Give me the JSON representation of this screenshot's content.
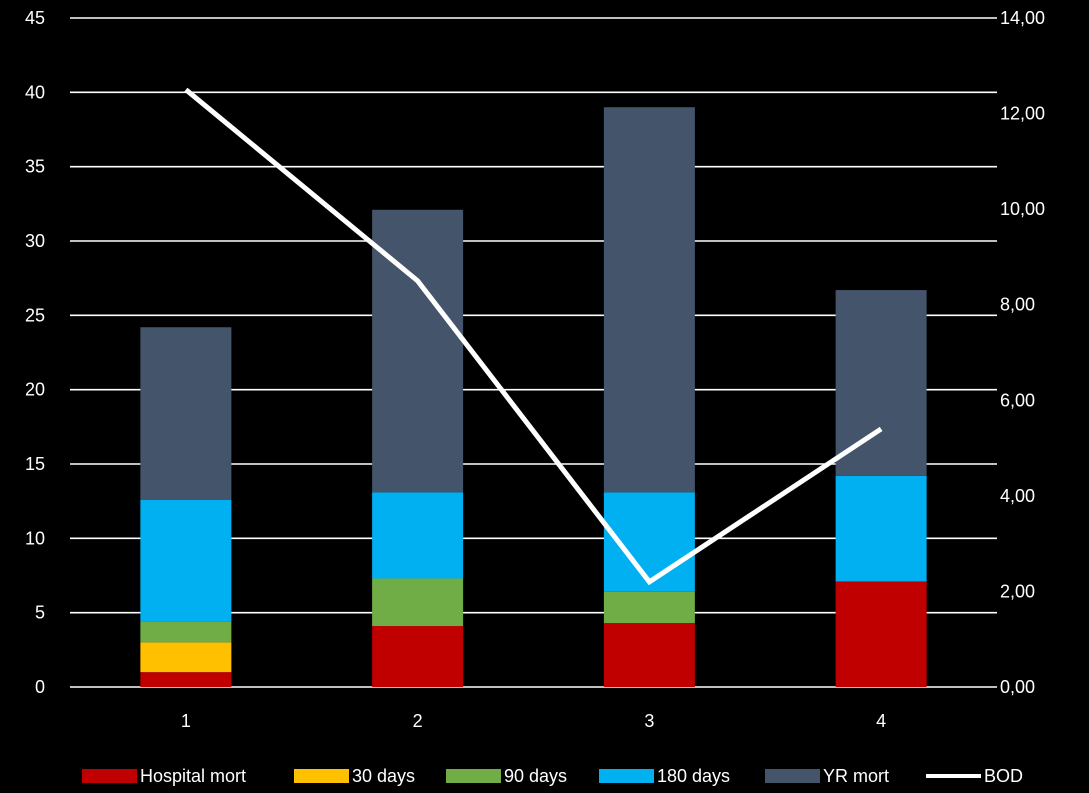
{
  "chart_data": {
    "type": "bar",
    "stacked": true,
    "categories": [
      "1",
      "2",
      "3",
      "4"
    ],
    "series": [
      {
        "name": "Hospital mort",
        "color": "#c00000",
        "values": [
          1,
          4.1,
          4.3,
          7.1
        ]
      },
      {
        "name": "30 days",
        "color": "#ffc000",
        "values": [
          2,
          0,
          0,
          0
        ]
      },
      {
        "name": "90 days",
        "color": "#70ad47",
        "values": [
          1.4,
          3.2,
          2.1,
          0
        ]
      },
      {
        "name": "180 days",
        "color": "#00b0f0",
        "values": [
          8.2,
          5.8,
          6.7,
          7.1
        ]
      },
      {
        "name": "YR mort",
        "color": "#44546a",
        "values": [
          11.6,
          19,
          25.9,
          12.5
        ]
      }
    ],
    "line_series": {
      "name": "BOD",
      "color": "#ffffff",
      "axis": "right",
      "values": [
        12.5,
        8.5,
        2.2,
        5.4
      ]
    },
    "y_left": {
      "min": 0,
      "max": 45,
      "ticks": [
        "0",
        "5",
        "10",
        "15",
        "20",
        "25",
        "30",
        "35",
        "40",
        "45"
      ]
    },
    "y_right": {
      "min": 0,
      "max": 14,
      "ticks": [
        "0,00",
        "2,00",
        "4,00",
        "6,00",
        "8,00",
        "10,00",
        "12,00",
        "14,00"
      ]
    },
    "grid": true,
    "legend_position": "bottom",
    "title": "",
    "xlabel": "",
    "ylabel": ""
  },
  "legend": {
    "items": [
      {
        "label": "Hospital mort",
        "color": "#c00000",
        "kind": "box"
      },
      {
        "label": "30 days",
        "color": "#ffc000",
        "kind": "box"
      },
      {
        "label": "90 days",
        "color": "#70ad47",
        "kind": "box"
      },
      {
        "label": "180 days",
        "color": "#00b0f0",
        "kind": "box"
      },
      {
        "label": "YR mort",
        "color": "#44546a",
        "kind": "box"
      },
      {
        "label": "BOD",
        "color": "#ffffff",
        "kind": "line"
      }
    ]
  }
}
